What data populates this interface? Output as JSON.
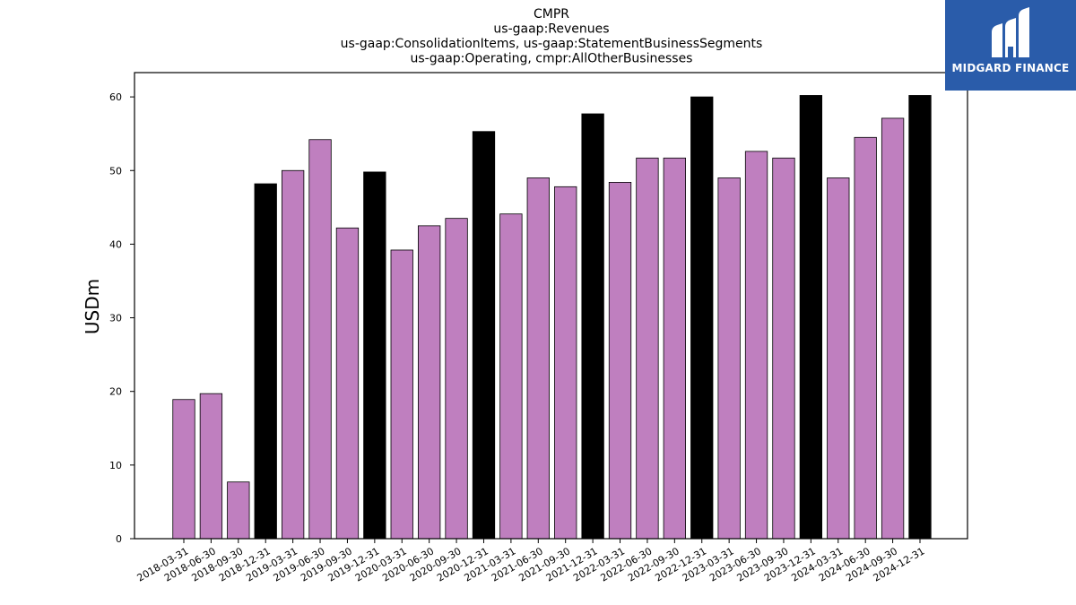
{
  "chart_data": {
    "type": "bar",
    "title_lines": [
      "CMPR",
      "us-gaap:Revenues",
      "us-gaap:ConsolidationItems, us-gaap:StatementBusinessSegments",
      "us-gaap:Operating, cmpr:AllOtherBusinesses"
    ],
    "xlabel": "",
    "ylabel": "USDm",
    "ylim": [
      0,
      63.3
    ],
    "yticks": [
      0,
      10,
      20,
      30,
      40,
      50,
      60
    ],
    "grid": false,
    "categories": [
      "2018-03-31",
      "2018-06-30",
      "2018-09-30",
      "2018-12-31",
      "2019-03-31",
      "2019-06-30",
      "2019-09-30",
      "2019-12-31",
      "2020-03-31",
      "2020-06-30",
      "2020-09-30",
      "2020-12-31",
      "2021-03-31",
      "2021-06-30",
      "2021-09-30",
      "2021-12-31",
      "2022-03-31",
      "2022-06-30",
      "2022-09-30",
      "2022-12-31",
      "2023-03-31",
      "2023-06-30",
      "2023-09-30",
      "2023-12-31",
      "2024-03-31",
      "2024-06-30",
      "2024-09-30",
      "2024-12-31"
    ],
    "values": [
      18.9,
      19.7,
      7.7,
      48.2,
      50.0,
      54.2,
      42.2,
      49.8,
      39.2,
      42.5,
      43.5,
      55.3,
      44.1,
      49.0,
      47.8,
      57.7,
      48.4,
      51.7,
      51.7,
      60.0,
      49.0,
      52.6,
      51.7,
      60.2,
      49.0,
      54.5,
      57.1,
      60.2
    ],
    "colors": {
      "quarter": "#bf7fbf",
      "year_end": "#000000",
      "edge": "#000000"
    }
  },
  "logo": {
    "text": "MIDGARD FINANCE",
    "icon": "midgard-m-logo-icon"
  }
}
